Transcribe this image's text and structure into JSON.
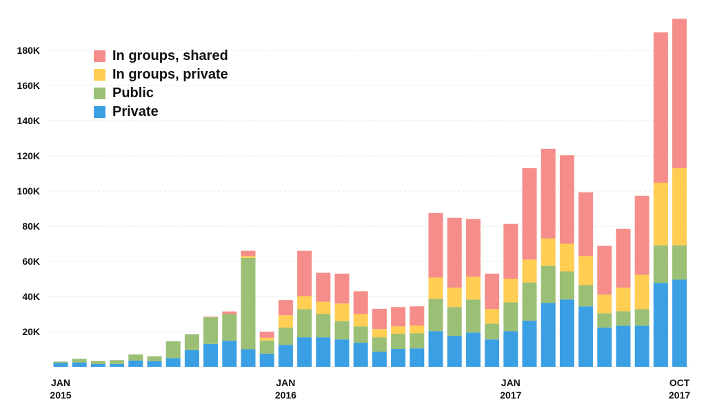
{
  "chart_data": {
    "type": "bar",
    "stacked": true,
    "title": "",
    "xlabel": "",
    "ylabel": "",
    "ylim": [
      0,
      200
    ],
    "y_unit": "K",
    "y_ticks": [
      20,
      40,
      60,
      80,
      100,
      120,
      140,
      160,
      180
    ],
    "y_tick_labels": [
      "20K",
      "40K",
      "60K",
      "80K",
      "100K",
      "120K",
      "140K",
      "160K",
      "180K"
    ],
    "grid": true,
    "legend_position": "top-left",
    "categories": [
      "Jan 2015",
      "Feb 2015",
      "Mar 2015",
      "Apr 2015",
      "May 2015",
      "Jun 2015",
      "Jul 2015",
      "Aug 2015",
      "Sep 2015",
      "Oct 2015",
      "Nov 2015",
      "Dec 2015",
      "Jan 2016",
      "Feb 2016",
      "Mar 2016",
      "Apr 2016",
      "May 2016",
      "Jun 2016",
      "Jul 2016",
      "Aug 2016",
      "Sep 2016",
      "Oct 2016",
      "Nov 2016",
      "Dec 2016",
      "Jan 2017",
      "Feb 2017",
      "Mar 2017",
      "Apr 2017",
      "May 2017",
      "Jun 2017",
      "Jul 2017",
      "Aug 2017",
      "Sep 2017",
      "Oct 2017"
    ],
    "x_tick_labels": [
      {
        "index": 0,
        "line1": "JAN",
        "line2": "2015"
      },
      {
        "index": 12,
        "line1": "JAN",
        "line2": "2016"
      },
      {
        "index": 24,
        "line1": "JAN",
        "line2": "2017"
      },
      {
        "index": 33,
        "line1": "OCT",
        "line2": "2017"
      }
    ],
    "series": [
      {
        "name": "Private",
        "color": "#3B9FE3",
        "values": [
          2.2,
          2.5,
          1.6,
          1.6,
          3.6,
          3.2,
          5.0,
          9.5,
          13.0,
          14.8,
          10.0,
          7.5,
          12.5,
          16.8,
          16.8,
          15.6,
          13.7,
          8.6,
          10.2,
          10.5,
          20.3,
          17.6,
          19.5,
          15.6,
          20.3,
          26.2,
          36.3,
          38.3,
          34.4,
          22.3,
          23.4,
          23.4,
          47.7,
          49.6
        ]
      },
      {
        "name": "Public",
        "color": "#9BBF75",
        "values": [
          0.8,
          2.0,
          1.7,
          2.2,
          3.4,
          2.8,
          9.5,
          9.0,
          15.2,
          15.2,
          52.0,
          7.5,
          9.8,
          16.0,
          13.2,
          10.4,
          9.3,
          8.2,
          8.6,
          8.6,
          18.4,
          16.4,
          18.8,
          9.0,
          16.4,
          21.8,
          21.1,
          16.0,
          12.1,
          8.2,
          8.2,
          9.4,
          21.4,
          19.5
        ]
      },
      {
        "name": "In groups, private",
        "color": "#FFCE52",
        "values": [
          0,
          0,
          0,
          0,
          0,
          0,
          0,
          0,
          0,
          0,
          1.0,
          1.5,
          7.0,
          7.4,
          7.0,
          10.0,
          7.0,
          4.7,
          4.2,
          4.3,
          12.1,
          11.0,
          12.9,
          8.2,
          13.3,
          13.0,
          15.6,
          15.7,
          16.5,
          10.5,
          13.4,
          19.5,
          35.6,
          43.9
        ]
      },
      {
        "name": "In groups, shared",
        "color": "#F58E8A",
        "values": [
          0,
          0,
          0,
          0,
          0,
          0,
          0,
          0,
          0.3,
          1.5,
          3.0,
          3.5,
          8.7,
          25.8,
          16.5,
          17.0,
          13.0,
          11.5,
          11.0,
          11.0,
          36.7,
          39.8,
          32.8,
          20.2,
          31.3,
          52.0,
          51.0,
          50.3,
          36.2,
          27.8,
          33.5,
          45.0,
          85.5,
          85.0
        ]
      }
    ],
    "legend_order": [
      "In groups, shared",
      "In groups, private",
      "Public",
      "Private"
    ]
  }
}
